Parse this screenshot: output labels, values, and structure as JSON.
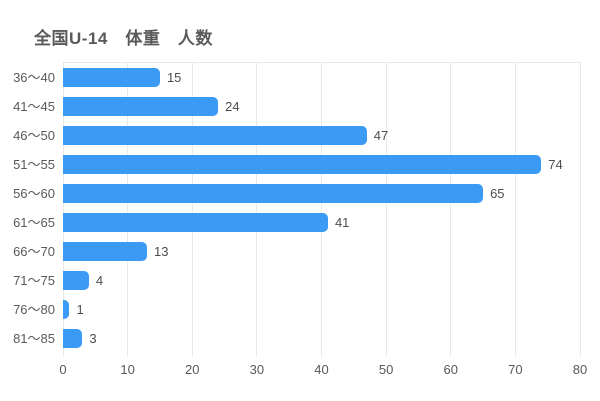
{
  "chart_data": {
    "type": "bar",
    "orientation": "horizontal",
    "title": "全国U-14　体重　人数",
    "categories": [
      "36〜40",
      "41〜45",
      "46〜50",
      "51〜55",
      "56〜60",
      "61〜65",
      "66〜70",
      "71〜75",
      "76〜80",
      "81〜85"
    ],
    "values": [
      15,
      24,
      47,
      74,
      65,
      41,
      13,
      4,
      1,
      3
    ],
    "xlabel": "",
    "ylabel": "",
    "xlim": [
      0,
      80
    ],
    "xticks": [
      0,
      10,
      20,
      30,
      40,
      50,
      60,
      70,
      80
    ],
    "grid": "vertical-only",
    "legend": "none",
    "bar_color": "#3b9bf4",
    "grid_color": "#e9e9e9",
    "label_color": "#595959",
    "value_label_color": "#4d4d4d",
    "background_color": "#ffffff"
  }
}
